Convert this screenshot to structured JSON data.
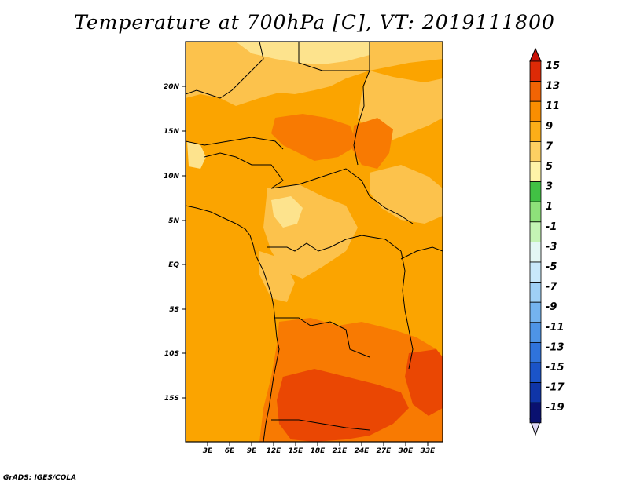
{
  "title": "Temperature at 700hPa [C], VT: 2019111800",
  "credit": "GrADS: IGES/COLA",
  "map": {
    "lon_labels": [
      "3E",
      "6E",
      "9E",
      "12E",
      "15E",
      "18E",
      "21E",
      "24E",
      "27E",
      "30E",
      "33E"
    ],
    "lat_labels": [
      "20N",
      "15N",
      "10N",
      "5N",
      "EQ",
      "5S",
      "10S",
      "15S"
    ],
    "fill_colors": {
      "t5_7": "#fde38d",
      "t7_9": "#fcc24c",
      "t9_11": "#fba400",
      "t11_13": "#f87a02",
      "t13_15": "#ea4703"
    }
  },
  "colorbar": {
    "labels": [
      "15",
      "13",
      "11",
      "9",
      "7",
      "5",
      "3",
      "1",
      "-1",
      "-3",
      "-5",
      "-7",
      "-9",
      "-11",
      "-13",
      "-15",
      "-17",
      "-19"
    ],
    "colors": [
      "#dd2a06",
      "#f26404",
      "#f98e01",
      "#fcae18",
      "#fdd062",
      "#fef3a8",
      "#41c144",
      "#8ee17a",
      "#c4f3b4",
      "#e3f7f4",
      "#c8e8fb",
      "#9fd0f6",
      "#74b3ef",
      "#4e94e6",
      "#2f73dc",
      "#1b54c8",
      "#0f35a8",
      "#0a1170"
    ],
    "top_arrow_color": "#ca1208",
    "bottom_arrow_color": "#ddd8f6"
  }
}
